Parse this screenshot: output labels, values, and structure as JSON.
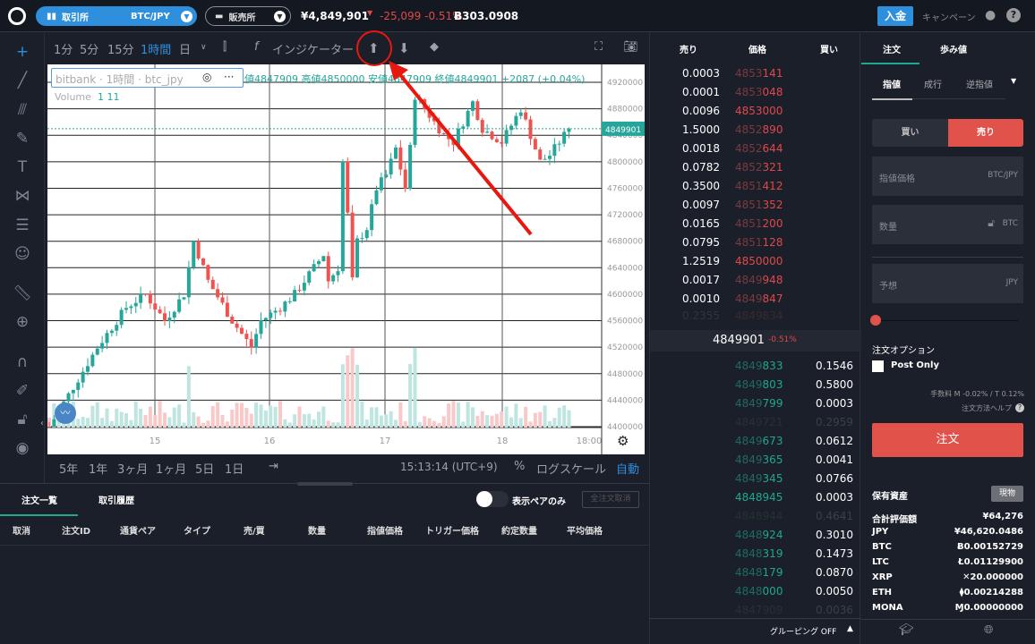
{
  "topbar": {
    "exchange_label": "取引所",
    "pair": "BTC/JPY",
    "shop_label": "販売所",
    "price": "¥4,849,901",
    "change": "-25,099 -0.51%",
    "btc_balance": "Ƀ303.0908",
    "deposit": "入金",
    "campaign": "キャンペーン"
  },
  "chart_toolbar": {
    "intervals": [
      "1分",
      "5分",
      "15分",
      "1時間",
      "日"
    ],
    "active_interval": "1時間",
    "indicators": "インジケーター"
  },
  "chart_legend": {
    "title": "bitbank · 1時間 · btc_jpy",
    "ohlc": "値4847909 高値4850000 安値4847909 終値4849901 +2087 (+0.04%)",
    "volume_label": "Volume",
    "volume_values": "1 11"
  },
  "chart_bottom": {
    "ranges": [
      "5年",
      "1年",
      "3ヶ月",
      "1ヶ月",
      "5日",
      "1日"
    ],
    "time": "15:13:14 (UTC+9)",
    "percent": "%",
    "log": "ログスケール",
    "auto": "自動"
  },
  "chart_data": {
    "type": "candlestick",
    "title": "bitbank · 1時間 · btc_jpy",
    "y_ticks": [
      "4920000",
      "4880000",
      "4840000",
      "4800000",
      "4760000",
      "4720000",
      "4680000",
      "4640000",
      "4600000",
      "4560000",
      "4520000",
      "4480000",
      "4440000",
      "4400000"
    ],
    "ylim": [
      4395000,
      4935000
    ],
    "x_ticks": [
      "15",
      "16",
      "17",
      "18",
      "18:00"
    ],
    "last_price_label": "4849901",
    "keypoints_hour_close": [
      [
        0,
        4400000
      ],
      [
        5,
        4460000
      ],
      [
        10,
        4520000
      ],
      [
        16,
        4580000
      ],
      [
        20,
        4600000
      ],
      [
        24,
        4560000
      ],
      [
        28,
        4600000
      ],
      [
        30,
        4680000
      ],
      [
        33,
        4620000
      ],
      [
        38,
        4560000
      ],
      [
        40,
        4540000
      ],
      [
        42,
        4520000
      ],
      [
        44,
        4560000
      ],
      [
        48,
        4580000
      ],
      [
        51,
        4600000
      ],
      [
        55,
        4640000
      ],
      [
        57,
        4660000
      ],
      [
        58,
        4620000
      ],
      [
        60,
        4640000
      ],
      [
        61,
        4800000
      ],
      [
        62,
        4720000
      ],
      [
        63,
        4620000
      ],
      [
        64,
        4680000
      ],
      [
        66,
        4700000
      ],
      [
        68,
        4760000
      ],
      [
        70,
        4780000
      ],
      [
        72,
        4820000
      ],
      [
        74,
        4760000
      ],
      [
        75,
        4820000
      ],
      [
        76,
        4900000
      ],
      [
        78,
        4880000
      ],
      [
        80,
        4860000
      ],
      [
        82,
        4840000
      ],
      [
        84,
        4830000
      ],
      [
        88,
        4890000
      ],
      [
        90,
        4850000
      ],
      [
        94,
        4830000
      ],
      [
        98,
        4880000
      ],
      [
        100,
        4840000
      ],
      [
        102,
        4800000
      ],
      [
        104,
        4810000
      ],
      [
        106,
        4830000
      ],
      [
        108,
        4849901
      ]
    ]
  },
  "orderbook": {
    "headers": [
      "売り",
      "価格",
      "買い"
    ],
    "asks": [
      [
        "0.0003",
        "4853",
        "141"
      ],
      [
        "0.0001",
        "4853",
        "048"
      ],
      [
        "0.0096",
        "",
        "4853000"
      ],
      [
        "1.5000",
        "4852",
        "890"
      ],
      [
        "0.0018",
        "4852",
        "644"
      ],
      [
        "0.0782",
        "4852",
        "321"
      ],
      [
        "0.3500",
        "4851",
        "412"
      ],
      [
        "0.0097",
        "4851",
        "352"
      ],
      [
        "0.0165",
        "4851",
        "200"
      ],
      [
        "0.0795",
        "4851",
        "128"
      ],
      [
        "1.2519",
        "",
        "4850000"
      ],
      [
        "0.0017",
        "4849",
        "948"
      ],
      [
        "0.0010",
        "4849",
        "847"
      ]
    ],
    "ask_faded": [
      "0.2355",
      "4849834"
    ],
    "mid_price": "4849901",
    "mid_change": "-0.51%",
    "bids": [
      [
        "4849",
        "833",
        "0.1546"
      ],
      [
        "4849",
        "803",
        "0.5800"
      ],
      [
        "4849",
        "799",
        "0.0003"
      ],
      [
        "",
        "",
        "0.2959",
        "4849721"
      ],
      [
        "4849",
        "673",
        "0.0612"
      ],
      [
        "4849",
        "365",
        "0.0041"
      ],
      [
        "4849",
        "345",
        "0.0766"
      ],
      [
        "",
        "4848945",
        "0.0003"
      ],
      [
        "",
        "",
        "0.4641",
        "4848944"
      ],
      [
        "4848",
        "924",
        "0.3010"
      ],
      [
        "4848",
        "319",
        "0.1473"
      ],
      [
        "4848",
        "179",
        "0.0870"
      ],
      [
        "4848",
        "000",
        "0.0050"
      ],
      [
        "",
        "",
        "0.0036",
        "4847909"
      ]
    ],
    "grouping": "グルーピング OFF"
  },
  "order_panel": {
    "tabs": [
      "注文",
      "歩み値"
    ],
    "types": [
      "指値",
      "成行",
      "逆指値"
    ],
    "buy": "買い",
    "sell": "売り",
    "price_label": "指値価格",
    "price_unit": "BTC/JPY",
    "qty_label": "数量",
    "qty_unit": "BTC",
    "est_label": "予想",
    "est_unit": "JPY",
    "options_label": "注文オプション",
    "post_only": "Post Only",
    "fee": "手数料 M -0.02% / T 0.12%",
    "help": "注文方法ヘルプ",
    "submit": "注文",
    "slider_value": 0,
    "assets_title": "保有資産",
    "assets_tag": "現物",
    "assets": [
      [
        "合計評価額",
        "¥64,276"
      ],
      [
        "JPY",
        "¥46,620.0486"
      ],
      [
        "BTC",
        "Ƀ0.00152729"
      ],
      [
        "LTC",
        "Ł0.01129900"
      ],
      [
        "XRP",
        "✕20.000000"
      ],
      [
        "ETH",
        "⧫0.00214288"
      ],
      [
        "MONA",
        "Ɱ0.00000000"
      ]
    ]
  },
  "orders": {
    "tabs": [
      "注文一覧",
      "取引履歴"
    ],
    "toggle_label": "表示ペアのみ",
    "cancel_all": "全注文取消",
    "columns": [
      "取消",
      "注文ID",
      "通貨ペア",
      "タイプ",
      "売/買",
      "数量",
      "指値価格",
      "トリガー価格",
      "約定数量",
      "平均価格"
    ]
  },
  "colors": {
    "up": "#26a69a",
    "down": "#ef5350",
    "accent": "#2e8fdc",
    "sell": "#e0524a"
  }
}
